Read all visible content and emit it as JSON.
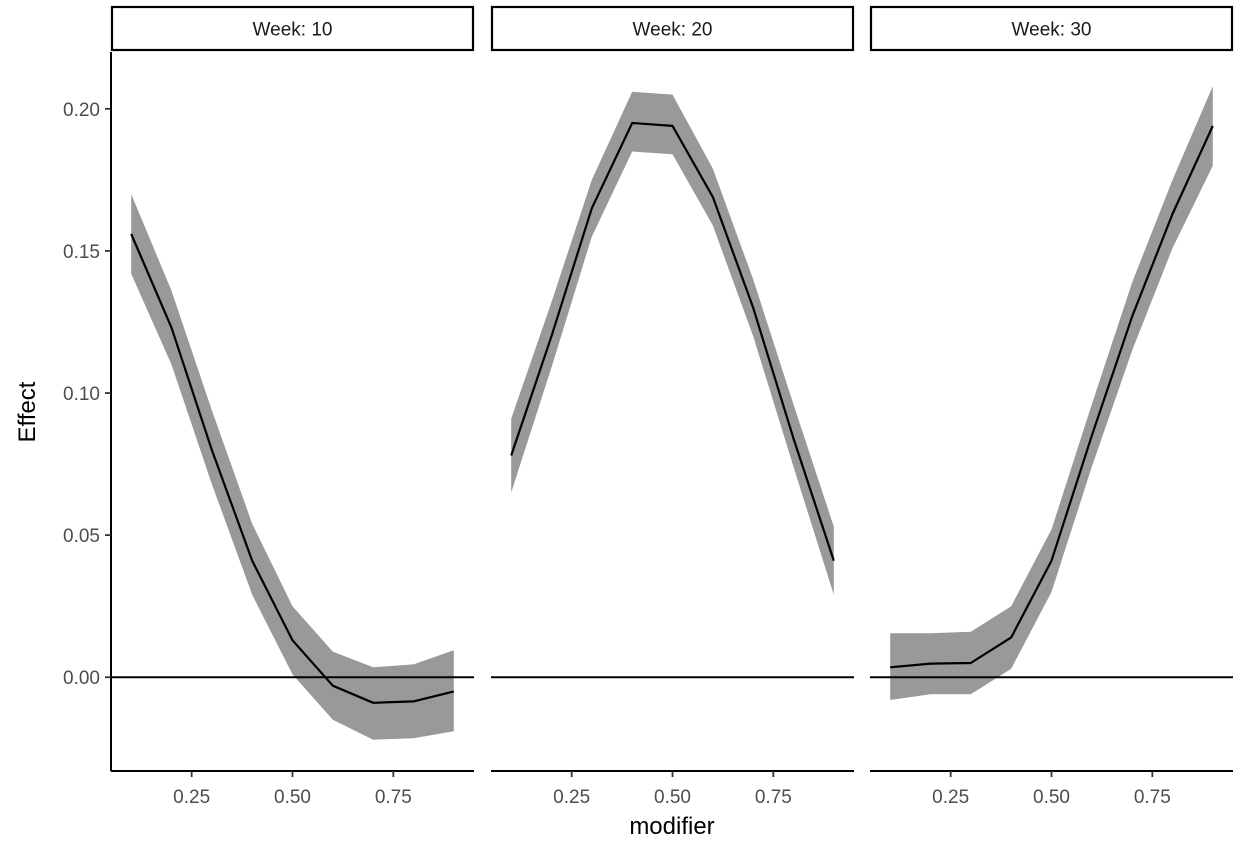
{
  "chart_data": {
    "type": "line",
    "xlabel": "modifier",
    "ylabel": "Effect",
    "xlim": [
      0.05,
      0.95
    ],
    "ylim": [
      -0.033,
      0.22
    ],
    "x_ticks": [
      0.25,
      0.5,
      0.75
    ],
    "x_tick_labels": [
      "0.25",
      "0.50",
      "0.75"
    ],
    "y_ticks": [
      0.0,
      0.05,
      0.1,
      0.15,
      0.2
    ],
    "y_tick_labels": [
      "0.00",
      "0.05",
      "0.10",
      "0.15",
      "0.20"
    ],
    "reference_line_y": 0,
    "colors": {
      "line": "#000000",
      "ribbon": "#999999",
      "hline": "#000000"
    },
    "grid": false,
    "facets": [
      {
        "strip": "Week: 10",
        "x": [
          0.1,
          0.2,
          0.3,
          0.4,
          0.5,
          0.6,
          0.7,
          0.8,
          0.9
        ],
        "y": [
          0.156,
          0.123,
          0.08,
          0.041,
          0.013,
          -0.003,
          -0.009,
          -0.0085,
          -0.005
        ],
        "lower": [
          0.142,
          0.11,
          0.068,
          0.029,
          0.001,
          -0.015,
          -0.022,
          -0.0215,
          -0.019
        ],
        "upper": [
          0.17,
          0.136,
          0.094,
          0.054,
          0.025,
          0.009,
          0.0035,
          0.0045,
          0.0095
        ]
      },
      {
        "strip": "Week: 20",
        "x": [
          0.1,
          0.2,
          0.3,
          0.4,
          0.5,
          0.6,
          0.7,
          0.8,
          0.9
        ],
        "y": [
          0.078,
          0.12,
          0.165,
          0.195,
          0.194,
          0.169,
          0.13,
          0.084,
          0.041
        ],
        "lower": [
          0.065,
          0.109,
          0.155,
          0.185,
          0.184,
          0.159,
          0.12,
          0.074,
          0.029
        ],
        "upper": [
          0.091,
          0.132,
          0.175,
          0.206,
          0.205,
          0.179,
          0.14,
          0.096,
          0.053
        ]
      },
      {
        "strip": "Week: 30",
        "x": [
          0.1,
          0.2,
          0.3,
          0.4,
          0.5,
          0.6,
          0.7,
          0.8,
          0.9
        ],
        "y": [
          0.0035,
          0.0048,
          0.005,
          0.014,
          0.041,
          0.085,
          0.127,
          0.163,
          0.194
        ],
        "lower": [
          -0.008,
          -0.006,
          -0.006,
          0.003,
          0.03,
          0.074,
          0.115,
          0.151,
          0.18
        ],
        "upper": [
          0.0155,
          0.0155,
          0.016,
          0.025,
          0.052,
          0.096,
          0.139,
          0.175,
          0.208
        ]
      }
    ]
  }
}
